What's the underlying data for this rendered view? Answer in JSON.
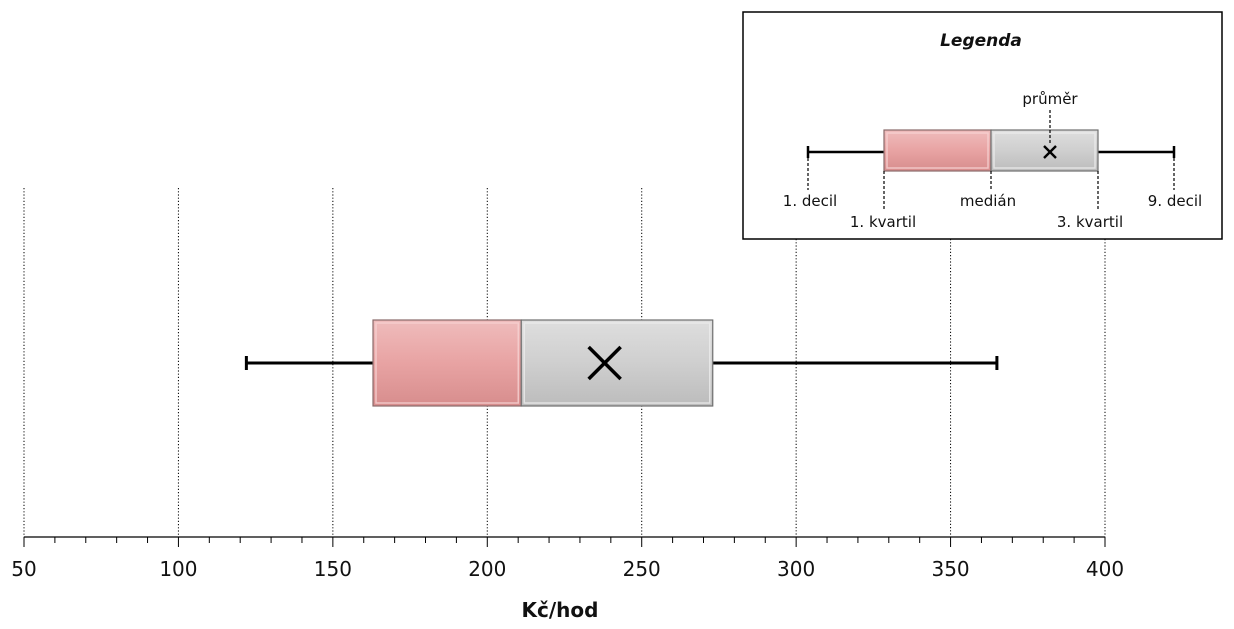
{
  "chart_data": {
    "type": "boxplot",
    "xlabel": "Kč/hod",
    "xlim": [
      50,
      400
    ],
    "x_ticks": [
      50,
      100,
      150,
      200,
      250,
      300,
      350,
      400
    ],
    "x_minor_step": 10,
    "grid": "vertical dotted at major ticks",
    "box": {
      "decile_1": 122,
      "quartile_1": 163,
      "median": 211,
      "mean": 238,
      "quartile_3": 273,
      "decile_9": 365
    },
    "colors": {
      "lower_box": "#e8a3a3",
      "upper_box": "#cfcfcf"
    },
    "legend": {
      "title": "Legenda",
      "labels": {
        "decile_1": "1. decil",
        "quartile_1": "1. kvartil",
        "median": "medián",
        "mean": "průměr",
        "quartile_3": "3. kvartil",
        "decile_9": "9. decil"
      }
    }
  }
}
